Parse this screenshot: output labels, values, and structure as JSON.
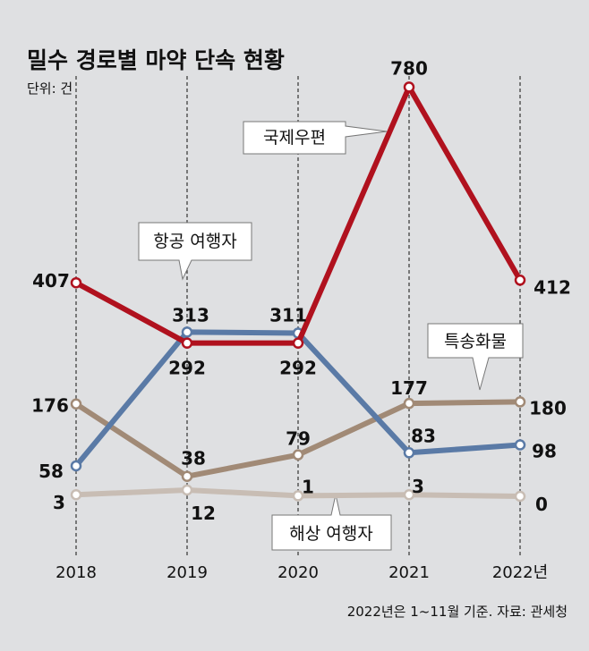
{
  "chart_data": {
    "type": "line",
    "title": "밀수 경로별 마약 단속 현황",
    "unit": "단위: 건",
    "x": [
      "2018",
      "2019",
      "2020",
      "2021",
      "2022년"
    ],
    "series": [
      {
        "name": "국제우편",
        "values": [
          407,
          292,
          292,
          780,
          412
        ],
        "labels": [
          "407",
          "292",
          "292",
          "780",
          "412"
        ],
        "color": "#b0111e"
      },
      {
        "name": "항공 여행자",
        "values": [
          58,
          313,
          311,
          83,
          98
        ],
        "labels": [
          "58",
          "313",
          "311",
          "83",
          "98"
        ],
        "color": "#5a7aa6"
      },
      {
        "name": "특송화물",
        "values": [
          176,
          38,
          79,
          177,
          180
        ],
        "labels": [
          "176",
          "38",
          "79",
          "177",
          "180"
        ],
        "color": "#a18a76"
      },
      {
        "name": "해상 여행자",
        "values": [
          3,
          12,
          1,
          3,
          0
        ],
        "labels": [
          "3",
          "12",
          "1",
          "3",
          "0"
        ],
        "color": "#c8bdb4"
      }
    ],
    "note": "2022년은 1~11월 기준.",
    "source": "자료: 관세청"
  }
}
